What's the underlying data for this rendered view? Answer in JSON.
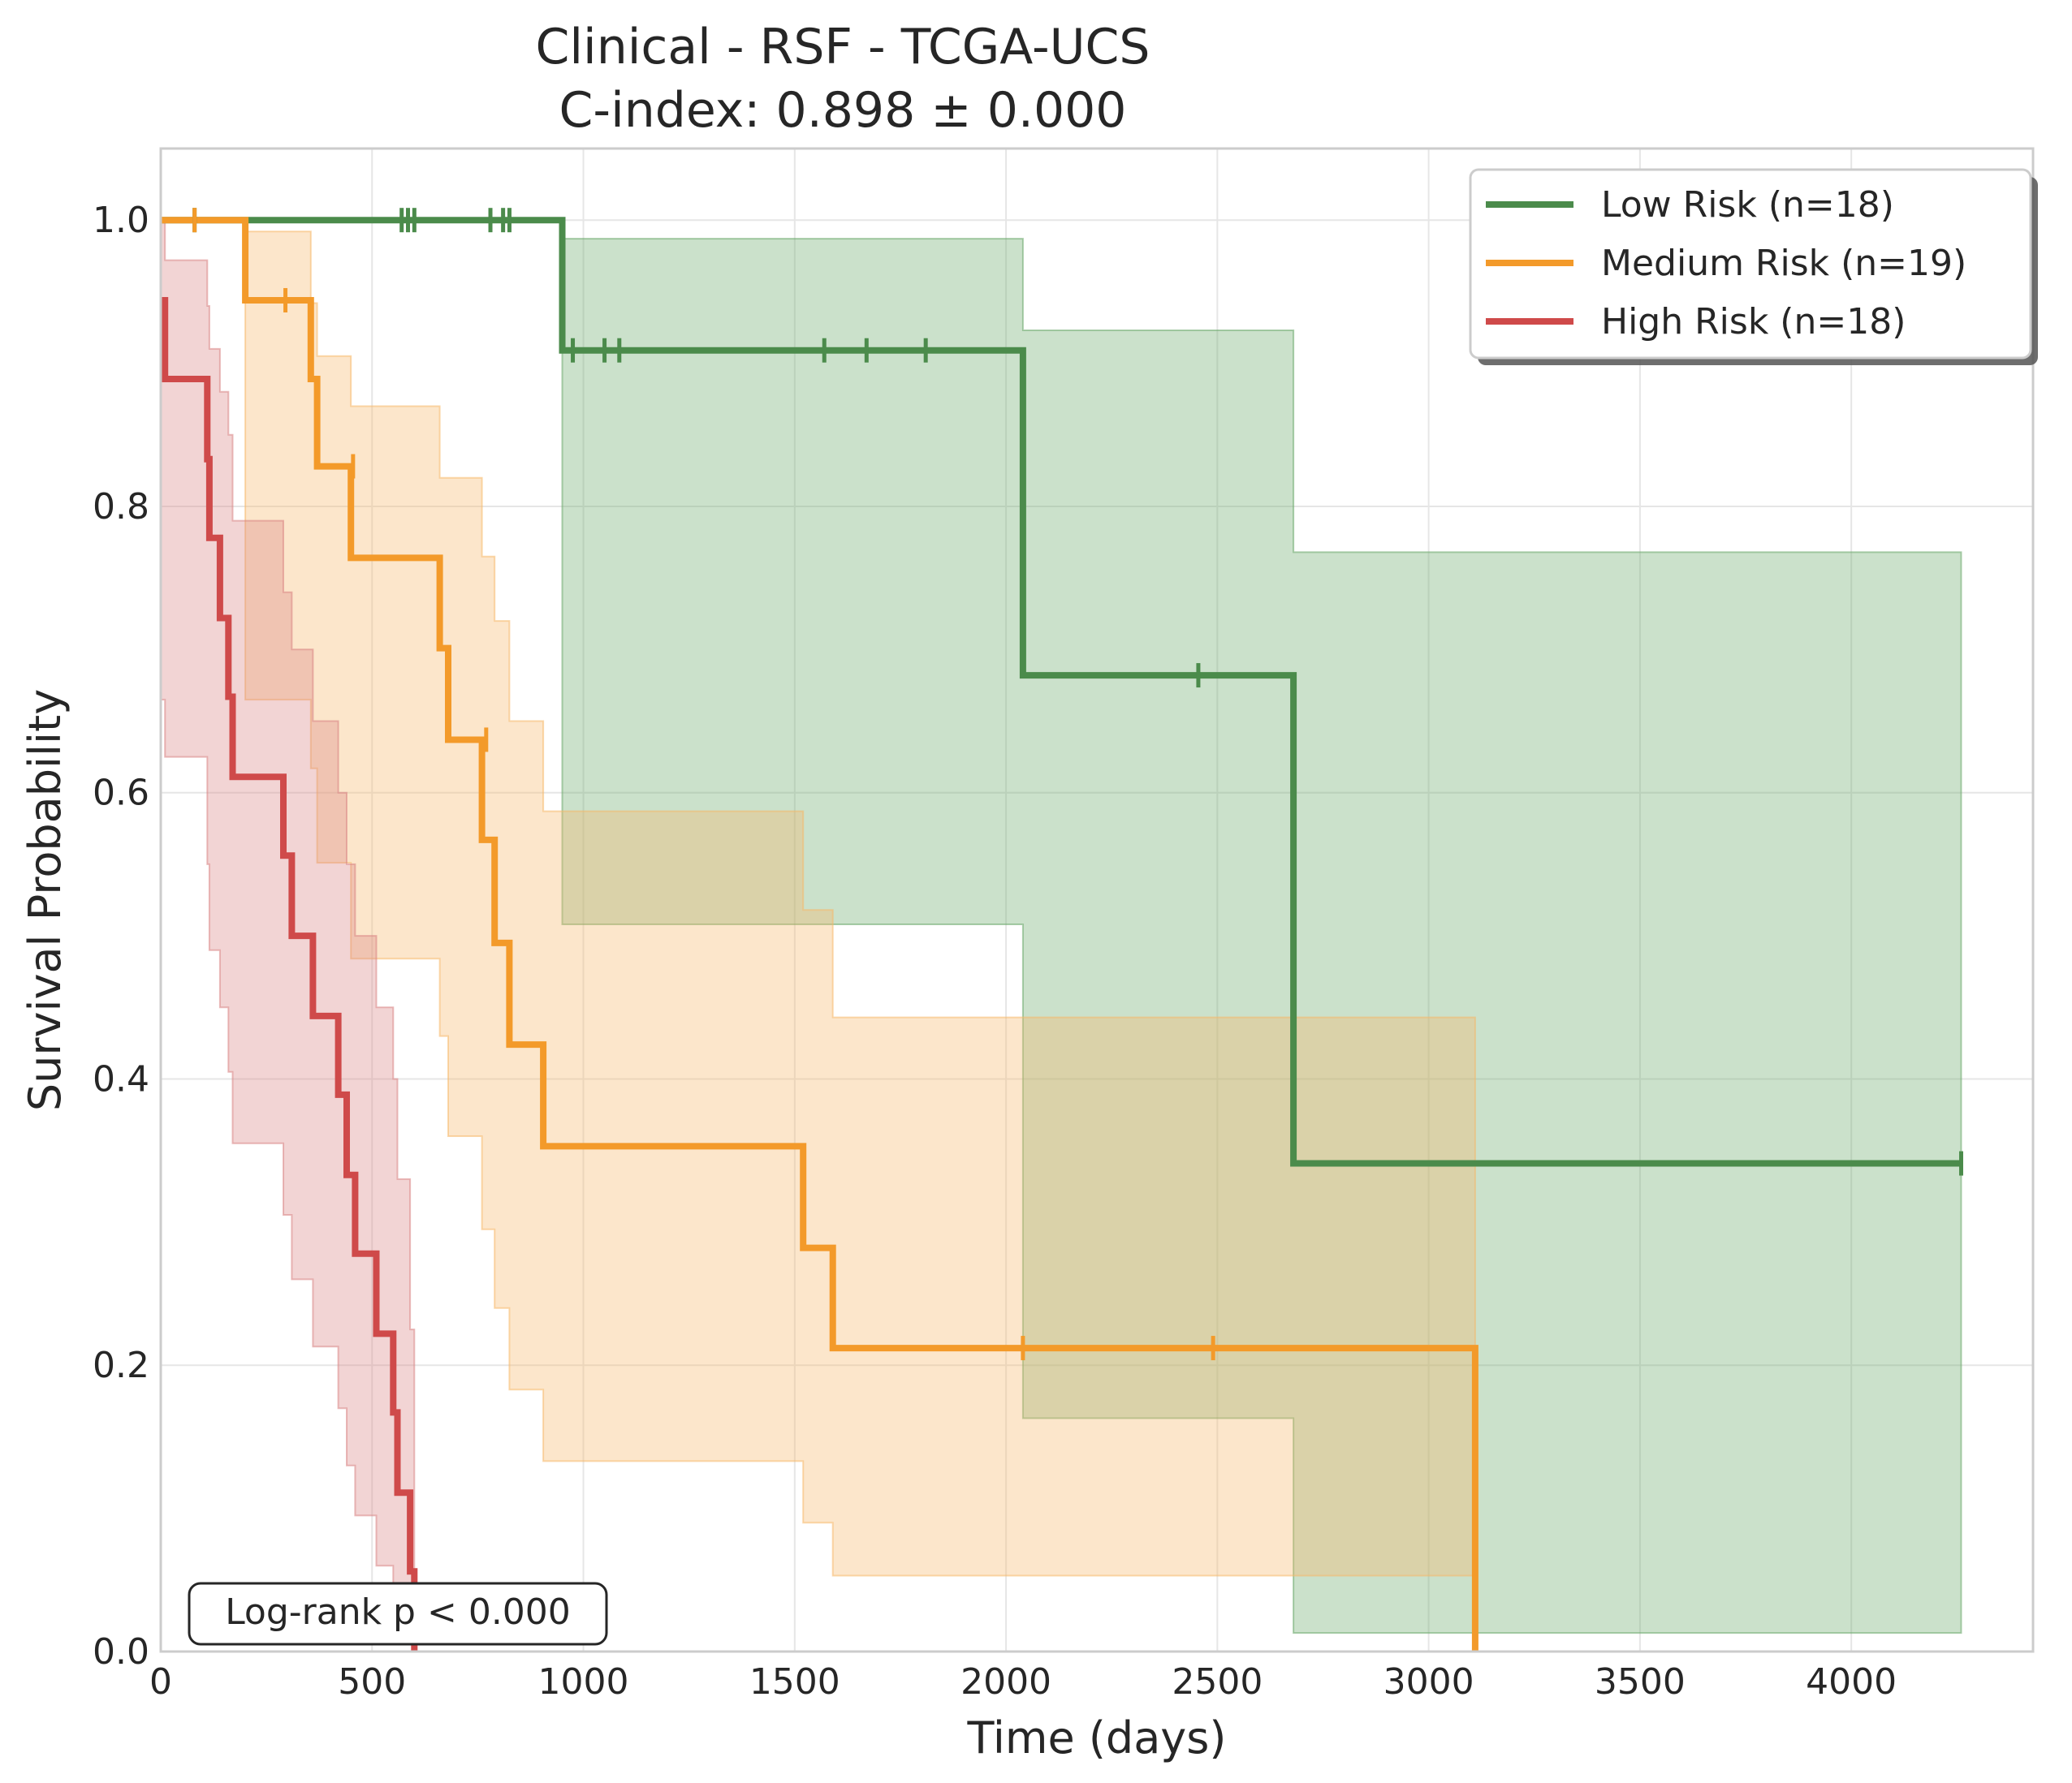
{
  "chart_data": {
    "type": "line",
    "subtype": "kaplan-meier",
    "title": "Clinical - RSF - TCGA-UCS",
    "subtitle": "C-index: 0.898 ± 0.000",
    "xlabel": "Time (days)",
    "ylabel": "Survival Probability",
    "xlim": [
      0,
      4430
    ],
    "ylim": [
      0,
      1.05
    ],
    "xticks": [
      0,
      500,
      1000,
      1500,
      2000,
      2500,
      3000,
      3500,
      4000
    ],
    "yticks": [
      0.0,
      0.2,
      0.4,
      0.6,
      0.8,
      1.0
    ],
    "grid": true,
    "legend_position": "top-right",
    "annotation": "Log-rank p < 0.000",
    "series": [
      {
        "name": "Low Risk (n=18)",
        "color": "#4b8b4b",
        "fill_color": "#6aa86a",
        "steps": [
          [
            0,
            1.0
          ],
          [
            950,
            0.909
          ],
          [
            2040,
            0.682
          ],
          [
            2680,
            0.341
          ],
          [
            4260,
            0.341
          ]
        ],
        "ci": [
          [
            0,
            1.0,
            1.0
          ],
          [
            950,
            0.508,
            0.987
          ],
          [
            2040,
            0.163,
            0.923
          ],
          [
            2680,
            0.013,
            0.768
          ],
          [
            4260,
            0.013,
            0.768
          ]
        ],
        "censors": [
          [
            80,
            1.0
          ],
          [
            570,
            1.0
          ],
          [
            585,
            1.0
          ],
          [
            600,
            1.0
          ],
          [
            780,
            1.0
          ],
          [
            810,
            1.0
          ],
          [
            825,
            1.0
          ],
          [
            975,
            0.909
          ],
          [
            1050,
            0.909
          ],
          [
            1085,
            0.909
          ],
          [
            1570,
            0.909
          ],
          [
            1670,
            0.909
          ],
          [
            1810,
            0.909
          ],
          [
            2455,
            0.682
          ],
          [
            4260,
            0.341
          ]
        ]
      },
      {
        "name": "Medium Risk (n=19)",
        "color": "#f39a2a",
        "fill_color": "#f5b86a",
        "steps": [
          [
            0,
            1.0
          ],
          [
            200,
            0.944
          ],
          [
            355,
            0.889
          ],
          [
            370,
            0.828
          ],
          [
            450,
            0.764
          ],
          [
            660,
            0.701
          ],
          [
            680,
            0.637
          ],
          [
            760,
            0.567
          ],
          [
            790,
            0.495
          ],
          [
            825,
            0.424
          ],
          [
            905,
            0.353
          ],
          [
            1520,
            0.282
          ],
          [
            1590,
            0.212
          ],
          [
            3110,
            0.212
          ],
          [
            3110,
            0.0
          ]
        ],
        "ci": [
          [
            0,
            1.0,
            1.0
          ],
          [
            200,
            0.665,
            0.992
          ],
          [
            355,
            0.617,
            0.942
          ],
          [
            370,
            0.551,
            0.905
          ],
          [
            450,
            0.484,
            0.87
          ],
          [
            660,
            0.43,
            0.82
          ],
          [
            680,
            0.36,
            0.82
          ],
          [
            760,
            0.295,
            0.765
          ],
          [
            790,
            0.24,
            0.72
          ],
          [
            825,
            0.183,
            0.65
          ],
          [
            905,
            0.133,
            0.587
          ],
          [
            1520,
            0.09,
            0.518
          ],
          [
            1590,
            0.053,
            0.443
          ],
          [
            3110,
            0.053,
            0.443
          ]
        ],
        "censors": [
          [
            80,
            1.0
          ],
          [
            295,
            0.944
          ],
          [
            455,
            0.828
          ],
          [
            770,
            0.637
          ],
          [
            2040,
            0.212
          ],
          [
            2490,
            0.212
          ]
        ]
      },
      {
        "name": "High Risk (n=18)",
        "color": "#cf4a4a",
        "fill_color": "#d98383",
        "steps": [
          [
            0,
            0.944
          ],
          [
            10,
            0.889
          ],
          [
            110,
            0.833
          ],
          [
            115,
            0.778
          ],
          [
            140,
            0.722
          ],
          [
            160,
            0.667
          ],
          [
            170,
            0.611
          ],
          [
            290,
            0.556
          ],
          [
            310,
            0.5
          ],
          [
            360,
            0.444
          ],
          [
            420,
            0.389
          ],
          [
            440,
            0.333
          ],
          [
            460,
            0.278
          ],
          [
            510,
            0.222
          ],
          [
            550,
            0.167
          ],
          [
            560,
            0.111
          ],
          [
            590,
            0.056
          ],
          [
            600,
            0.0
          ]
        ],
        "ci": [
          [
            0,
            0.665,
            1.0
          ],
          [
            10,
            0.625,
            0.972
          ],
          [
            110,
            0.55,
            0.94
          ],
          [
            115,
            0.49,
            0.91
          ],
          [
            140,
            0.45,
            0.88
          ],
          [
            160,
            0.405,
            0.85
          ],
          [
            170,
            0.355,
            0.79
          ],
          [
            290,
            0.305,
            0.74
          ],
          [
            310,
            0.26,
            0.7
          ],
          [
            360,
            0.213,
            0.65
          ],
          [
            420,
            0.17,
            0.6
          ],
          [
            440,
            0.13,
            0.55
          ],
          [
            460,
            0.095,
            0.5
          ],
          [
            510,
            0.06,
            0.45
          ],
          [
            550,
            0.03,
            0.4
          ],
          [
            560,
            0.012,
            0.33
          ],
          [
            590,
            0.005,
            0.225
          ],
          [
            600,
            0.0,
            0.225
          ]
        ],
        "censors": []
      }
    ]
  }
}
